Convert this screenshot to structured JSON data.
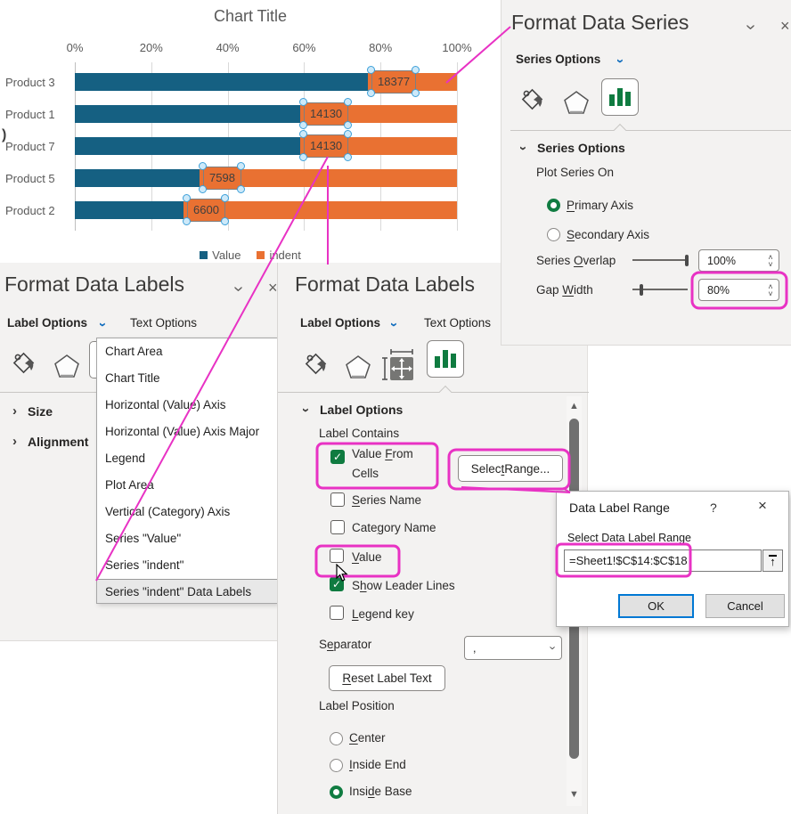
{
  "chart_data": {
    "type": "bar",
    "orientation": "horizontal-stacked-100pct",
    "title": "Chart Title",
    "categories": [
      "Product 3",
      "Product 1",
      "Product 7",
      "Product 5",
      "Product 2"
    ],
    "series": [
      {
        "name": "Value",
        "color": "#156082",
        "values": [
          18377,
          14130,
          14130,
          7598,
          6600
        ],
        "pct": [
          76.7,
          59.0,
          59.0,
          32.6,
          28.4
        ]
      },
      {
        "name": "indent",
        "color": "#E97132",
        "pct": [
          23.3,
          41.0,
          41.0,
          67.4,
          71.6
        ]
      }
    ],
    "data_labels": [
      "18377",
      "14130",
      "14130",
      "7598",
      "6600"
    ],
    "x_ticks": [
      "0%",
      "20%",
      "40%",
      "60%",
      "80%",
      "100%"
    ],
    "xlim": [
      "0%",
      "100%"
    ],
    "grid": true,
    "legend": [
      "Value",
      "indent"
    ],
    "legend_position": "bottom"
  },
  "chart_extra": {
    "stray_glyph": ")"
  },
  "series_pane": {
    "title": "Format Data Series",
    "tab": "Series Options",
    "section": "Series Options",
    "plot_series_on": "Plot Series On",
    "primary_axis": {
      "pre": "",
      "u": "P",
      "post": "rimary Axis"
    },
    "secondary_axis": {
      "pre": "",
      "u": "S",
      "post": "econdary Axis"
    },
    "series_overlap": {
      "pre": "Series ",
      "u": "O",
      "post": "verlap"
    },
    "series_overlap_value": "100%",
    "gap_width": {
      "pre": "Gap ",
      "u": "W",
      "post": "idth"
    },
    "gap_width_value": "80%",
    "chevron": "›",
    "close": "×"
  },
  "labels_pane_left": {
    "title": "Format Data Labels",
    "tab1": "Label Options",
    "tab2": "Text Options",
    "size": "Size",
    "alignment": "Alignment",
    "chevron": "›",
    "close": "×"
  },
  "element_menu": {
    "items": [
      "Chart Area",
      "Chart Title",
      "Horizontal (Value) Axis",
      "Horizontal (Value) Axis Major",
      "Legend",
      "Plot Area",
      "Vertical (Category) Axis",
      "Series \"Value\"",
      "Series \"indent\""
    ],
    "selected": "Series \"indent\" Data Labels"
  },
  "labels_pane_mid": {
    "title": "Format Data Labels",
    "tab1": "Label Options",
    "tab2": "Text Options",
    "section": "Label Options",
    "label_contains": "Label Contains",
    "value_from_line1": {
      "pre": "Value ",
      "u": "F",
      "post": "rom"
    },
    "value_from_line2": "Cells",
    "select_range": {
      "pre": "Selec",
      "u": "t",
      "post": " Range..."
    },
    "series_name": {
      "pre": "",
      "u": "S",
      "post": "eries Name"
    },
    "category_name": {
      "pre": "Cate",
      "u": "g",
      "post": "ory Name"
    },
    "value": {
      "pre": "",
      "u": "V",
      "post": "alue"
    },
    "show_leader_lines": {
      "pre": "S",
      "u": "h",
      "post": "ow Leader Lines"
    },
    "legend_key": {
      "pre": "",
      "u": "L",
      "post": "egend key"
    },
    "separator": {
      "pre": "S",
      "u": "e",
      "post": "parator"
    },
    "separator_value": ",",
    "reset_label_text": {
      "pre": "",
      "u": "R",
      "post": "eset Label Text"
    },
    "label_position": "Label Position",
    "center": {
      "pre": "",
      "u": "C",
      "post": "enter"
    },
    "inside_end": {
      "pre": "",
      "u": "I",
      "post": "nside End"
    },
    "inside_base": {
      "pre": "Insi",
      "u": "d",
      "post": "e Base"
    }
  },
  "dialog": {
    "title": "Data Label Range",
    "help": "?",
    "close": "×",
    "label": "Select Data Label Range",
    "range_value": "=Sheet1!$C$14:$C$18",
    "ok": "OK",
    "cancel": "Cancel"
  },
  "colors": {
    "series_value": "#156082",
    "series_indent": "#E97132",
    "accent_green": "#107C41",
    "accent_blue": "#0F6CBD",
    "annotation_magenta": "#E832C4",
    "pane_background": "#f3f2f1"
  }
}
